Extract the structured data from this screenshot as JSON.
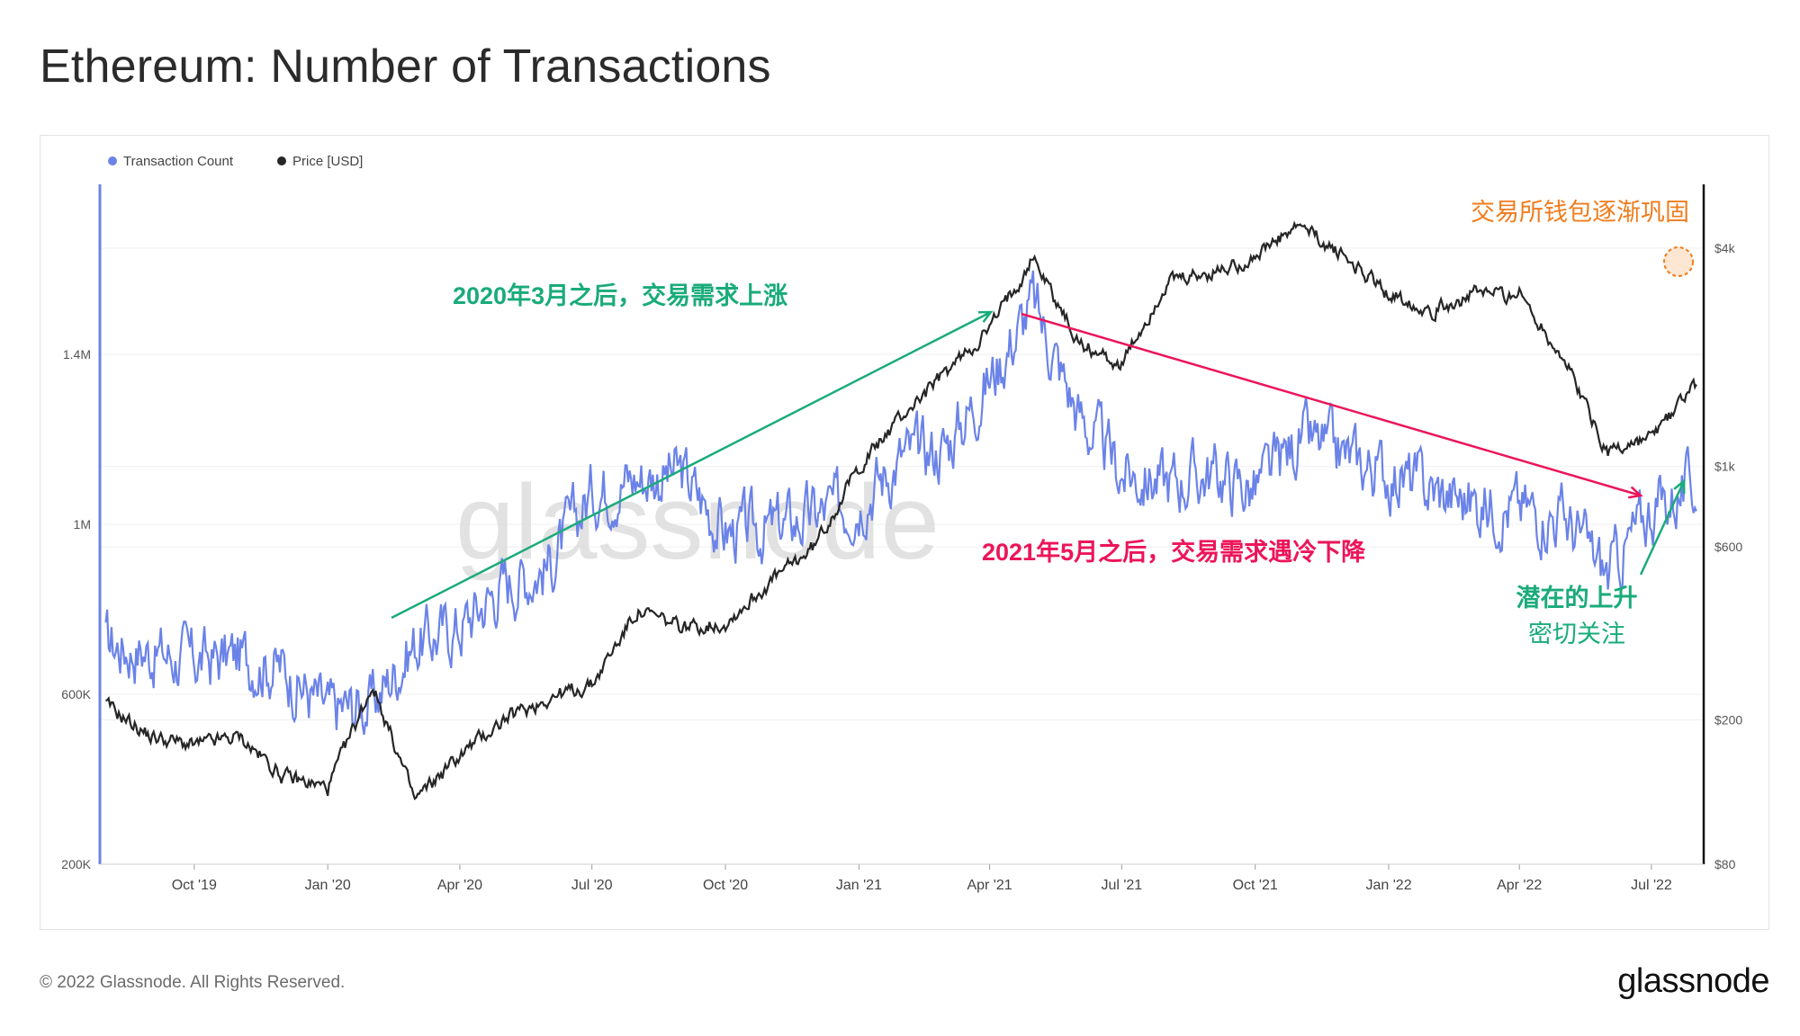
{
  "title": "Ethereum: Number of Transactions",
  "footer": {
    "copyright": "© 2022 Glassnode. All Rights Reserved.",
    "logo": "glassnode"
  },
  "watermark": "glassnode",
  "colors": {
    "transaction_count": "#6b83e8",
    "price": "#262626",
    "up_arrow": "#1aab7a",
    "down_arrow": "#ec1559",
    "exchange_note": "#f07c1c"
  },
  "chart_data": {
    "type": "line",
    "legend_position": "top-left",
    "grid": true,
    "x_ticks": [
      "Oct '19",
      "Jan '20",
      "Apr '20",
      "Jul '20",
      "Oct '20",
      "Jan '21",
      "Apr '21",
      "Jul '21",
      "Oct '21",
      "Jan '22",
      "Apr '22",
      "Jul '22"
    ],
    "y_left": {
      "ticks": [
        "200K",
        "600K",
        "1M",
        "1.4M"
      ],
      "range": [
        200000,
        1800000
      ]
    },
    "y_right": {
      "scale": "log",
      "ticks": [
        "$80",
        "$200",
        "$600",
        "$1k",
        "$4k"
      ],
      "range": [
        80,
        6000
      ]
    },
    "series": [
      {
        "name": "Transaction Count",
        "axis": "left",
        "x": [
          "2019-08-01",
          "2019-09-01",
          "2019-10-01",
          "2019-11-01",
          "2019-12-01",
          "2020-01-01",
          "2020-02-01",
          "2020-03-01",
          "2020-04-01",
          "2020-05-01",
          "2020-06-01",
          "2020-07-01",
          "2020-08-01",
          "2020-09-01",
          "2020-10-01",
          "2020-11-01",
          "2020-12-01",
          "2021-01-01",
          "2021-02-01",
          "2021-03-01",
          "2021-04-01",
          "2021-05-01",
          "2021-06-01",
          "2021-07-01",
          "2021-08-01",
          "2021-09-01",
          "2021-10-01",
          "2021-11-01",
          "2021-12-01",
          "2022-01-01",
          "2022-02-01",
          "2022-03-01",
          "2022-04-01",
          "2022-05-01",
          "2022-06-01",
          "2022-07-01",
          "2022-08-01"
        ],
        "values": [
          720000,
          700000,
          680000,
          690000,
          660000,
          560000,
          580000,
          720000,
          760000,
          860000,
          900000,
          1080000,
          1110000,
          1120000,
          980000,
          990000,
          1020000,
          1060000,
          1160000,
          1180000,
          1340000,
          1520000,
          1260000,
          1120000,
          1100000,
          1120000,
          1080000,
          1200000,
          1160000,
          1120000,
          1080000,
          1050000,
          1040000,
          1020000,
          880000,
          1040000,
          1090000
        ]
      },
      {
        "name": "Price [USD]",
        "axis": "right",
        "x": [
          "2019-08-01",
          "2019-09-01",
          "2019-10-01",
          "2019-11-01",
          "2019-12-01",
          "2020-01-01",
          "2020-02-01",
          "2020-03-01",
          "2020-04-01",
          "2020-05-01",
          "2020-06-01",
          "2020-07-01",
          "2020-08-01",
          "2020-09-01",
          "2020-10-01",
          "2020-11-01",
          "2020-12-01",
          "2021-01-01",
          "2021-02-01",
          "2021-03-01",
          "2021-04-01",
          "2021-05-01",
          "2021-06-01",
          "2021-07-01",
          "2021-08-01",
          "2021-09-01",
          "2021-10-01",
          "2021-11-01",
          "2021-12-01",
          "2022-01-01",
          "2022-02-01",
          "2022-03-01",
          "2022-04-01",
          "2022-05-01",
          "2022-06-01",
          "2022-07-01",
          "2022-08-01"
        ],
        "values": [
          220,
          180,
          170,
          180,
          140,
          130,
          250,
          120,
          160,
          200,
          230,
          250,
          400,
          360,
          370,
          480,
          600,
          1000,
          1400,
          1800,
          2400,
          3800,
          2200,
          1900,
          3200,
          3400,
          3800,
          4600,
          3800,
          3000,
          2700,
          3000,
          3000,
          2000,
          1100,
          1200,
          1700
        ]
      }
    ],
    "annotations": [
      {
        "text": "2020年3月之后，交易需求上涨"
      },
      {
        "text": "2021年5月之后，交易需求遇冷下降"
      },
      {
        "text": "潜在的上升"
      },
      {
        "text": "密切关注"
      },
      {
        "text": "交易所钱包逐渐巩固"
      }
    ]
  }
}
